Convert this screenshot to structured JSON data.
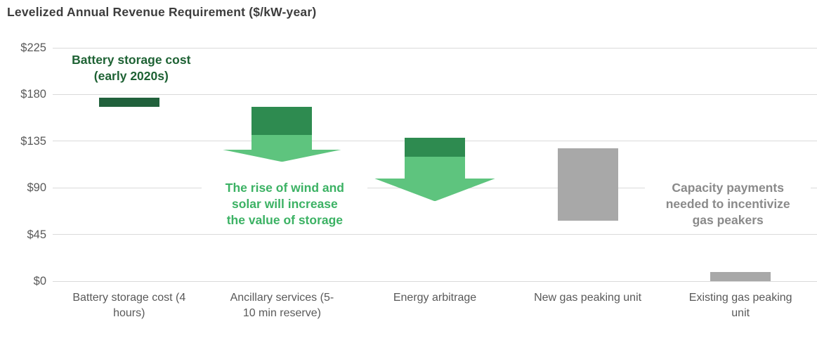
{
  "title": "Levelized Annual Revenue Requirement ($/kW-year)",
  "colors": {
    "title_text": "#3d3d3d",
    "axis_text": "#595959",
    "gridline": "#dadada",
    "dark_green": "#21613c",
    "mid_green": "#2e8b50",
    "light_green": "#5ec47e",
    "green_text": "#3cb264",
    "dark_green_text": "#1e6234",
    "gray_bar": "#a8a8a8",
    "gray_text": "#8a8a8a"
  },
  "chart_data": {
    "type": "bar",
    "subtype": "floating-range-columns-with-arrows",
    "title": "Levelized Annual Revenue Requirement ($/kW-year)",
    "xlabel": "",
    "ylabel": "$/kW-year",
    "ylim": [
      0,
      225
    ],
    "ytick_values": [
      0,
      45,
      90,
      135,
      180,
      225
    ],
    "ytick_labels": [
      "$0",
      "$45",
      "$90",
      "$135",
      "$180",
      "$225"
    ],
    "grid": "horizontal",
    "legend": "none",
    "categories": [
      "Battery storage cost (4 hours)",
      "Ancillary services (5-10 min reserve)",
      "Energy arbitrage",
      "New gas peaking unit",
      "Existing gas peaking unit"
    ],
    "category_labels_wrapped": [
      "Battery storage cost (4\nhours)",
      "Ancillary services (5-\n10 min reserve)",
      "Energy arbitrage",
      "New gas peaking unit",
      "Existing gas peaking\nunit"
    ],
    "bars": [
      {
        "category": "Battery storage cost (4 hours)",
        "low": 168,
        "high": 177,
        "color_key": "dark_green"
      },
      {
        "category": "Ancillary services (5-10 min reserve)",
        "low": 140,
        "high": 168,
        "color_key": "mid_green",
        "arrow": {
          "from": 140,
          "head_top": 127,
          "tip": 115,
          "color_key": "light_green"
        }
      },
      {
        "category": "Energy arbitrage",
        "low": 119,
        "high": 138,
        "color_key": "mid_green",
        "arrow": {
          "from": 119,
          "head_top": 99,
          "tip": 77,
          "color_key": "light_green"
        }
      },
      {
        "category": "New gas peaking unit",
        "low": 58,
        "high": 128,
        "color_key": "gray_bar"
      },
      {
        "category": "Existing gas peaking unit",
        "low": 0,
        "high": 9,
        "color_key": "gray_bar"
      }
    ],
    "annotations": [
      {
        "text": "Battery storage cost\n(early 2020s)",
        "color_key": "dark_green_text",
        "cat_index": 0,
        "top_value": 220,
        "dx": 3
      },
      {
        "text": "The rise of wind and\nsolar will increase\nthe value of storage",
        "color_key": "green_text",
        "cat_index": 1,
        "top_value": 97,
        "dx": 4
      },
      {
        "text": "Capacity payments\nneeded to incentivize\ngas peakers",
        "color_key": "gray_text",
        "cat_index": 4,
        "top_value": 97,
        "dx": -18
      }
    ]
  }
}
